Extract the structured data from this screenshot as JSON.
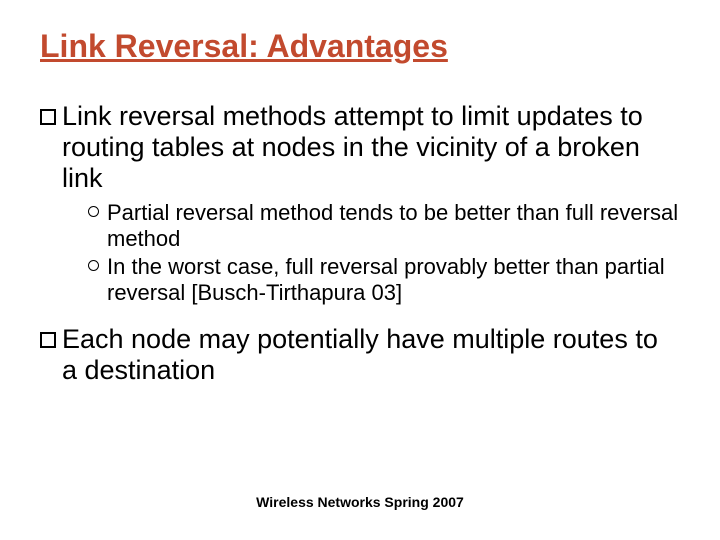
{
  "title": {
    "text": "Link Reversal: Advantages",
    "color": "#c24a2e",
    "fontsize": 32
  },
  "body": {
    "fontsize_lvl1": 27,
    "fontsize_lvl2": 22,
    "color": "#000000",
    "items": [
      {
        "text": "Link reversal methods attempt to limit updates to routing tables at nodes in the vicinity of a broken link",
        "sub": [
          {
            "text": "Partial reversal method tends to be better than full reversal method"
          },
          {
            "text": "In the worst case, full reversal provably better than partial reversal [Busch-Tirthapura 03]"
          }
        ]
      },
      {
        "text": "Each node may potentially have multiple routes to a destination",
        "sub": []
      }
    ]
  },
  "footer": {
    "text": "Wireless Networks Spring 2007",
    "fontsize": 14,
    "weight": "bold",
    "color": "#000000"
  }
}
